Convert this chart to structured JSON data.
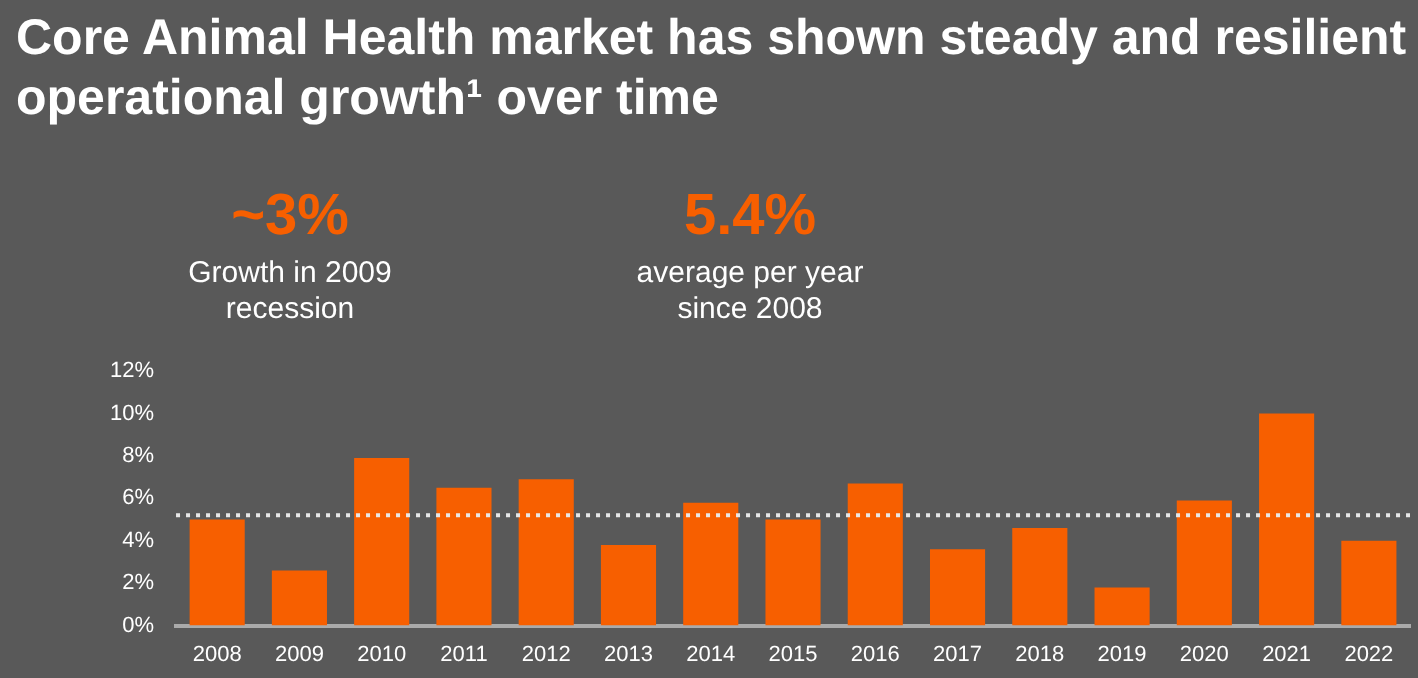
{
  "chart_data": {
    "type": "bar",
    "title": "Core Animal Health market has shown steady and resilient operational growth¹ over time",
    "annotations": [
      "~3%",
      "Growth in 2009\nrecession",
      "5.4%",
      "average per year\nsince 2008"
    ],
    "categories": [
      "2008",
      "2009",
      "2010",
      "2011",
      "2012",
      "2013",
      "2014",
      "2015",
      "2016",
      "2017",
      "2018",
      "2019",
      "2020",
      "2021",
      "2022"
    ],
    "values": [
      5.0,
      2.6,
      7.9,
      6.5,
      6.9,
      3.8,
      5.8,
      5.0,
      6.7,
      3.6,
      4.6,
      1.8,
      5.9,
      10.0,
      4.0
    ],
    "color": "#f75f00",
    "ylim": [
      0,
      12
    ],
    "yticks": [
      {
        "value": 0,
        "label": "0%"
      },
      {
        "value": 2,
        "label": "2%"
      },
      {
        "value": 4,
        "label": "4%"
      },
      {
        "value": 6,
        "label": "6%"
      },
      {
        "value": 8,
        "label": "8%"
      },
      {
        "value": 10,
        "label": "10%"
      },
      {
        "value": 12,
        "label": "12%"
      }
    ],
    "ref_lines": [
      {
        "axis": "y",
        "value": 5.2,
        "color": "#e8e8e8",
        "line_style": "dotted"
      }
    ],
    "grid": false,
    "legend": false
  }
}
